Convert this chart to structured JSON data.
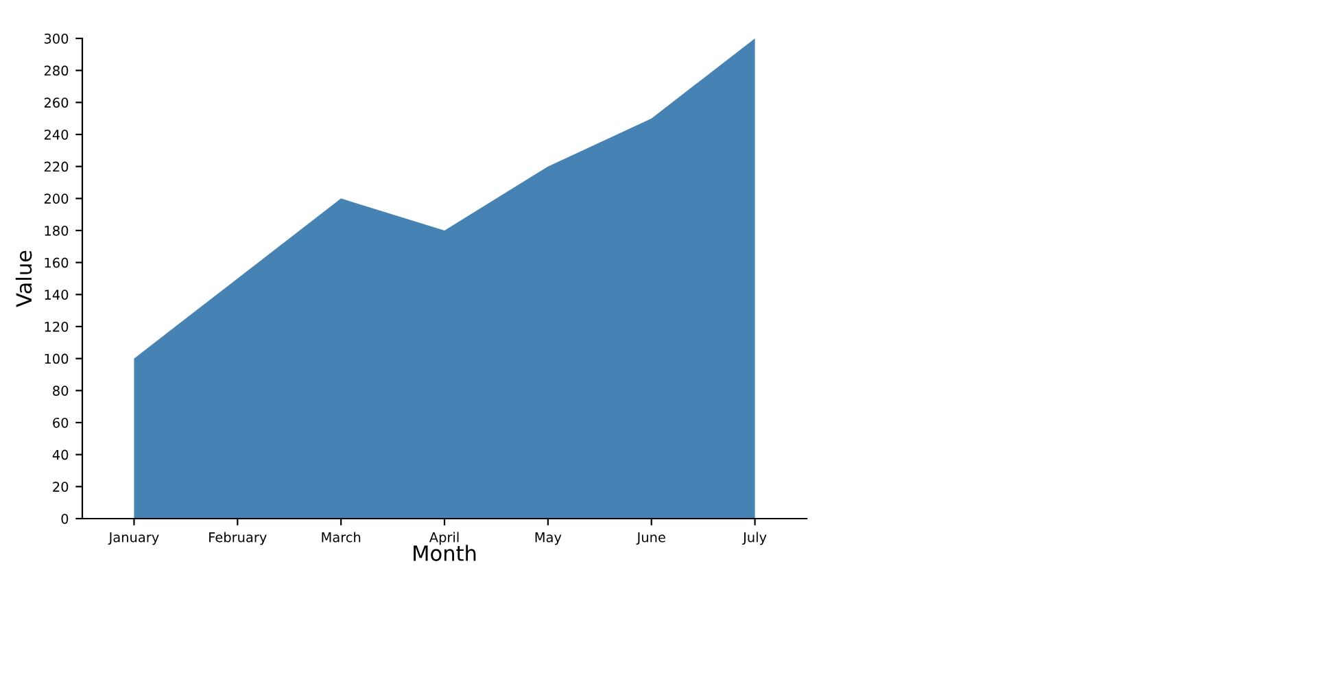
{
  "chart_data": {
    "type": "area",
    "xlabel": "Month",
    "ylabel": "Value",
    "categories": [
      "January",
      "February",
      "March",
      "April",
      "May",
      "June",
      "July"
    ],
    "series": [
      {
        "color": "#4682b4",
        "values": [
          100,
          150,
          200,
          180,
          220,
          250,
          300
        ]
      }
    ],
    "ylim": [
      0,
      300
    ],
    "yticks": [
      0,
      20,
      40,
      60,
      80,
      100,
      120,
      140,
      160,
      180,
      200,
      220,
      240,
      260,
      280,
      300
    ],
    "grid": false,
    "legend": false
  }
}
